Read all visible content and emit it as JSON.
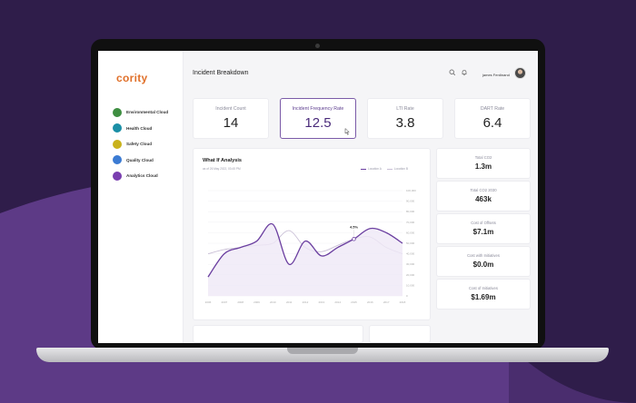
{
  "app": {
    "logo": "cority",
    "page_title": "Incident Breakdown",
    "user_name": "james Ferdinand"
  },
  "sidebar": {
    "items": [
      {
        "label": "Environmental Cloud",
        "icon": "leaf-icon",
        "color": "#3e8e41"
      },
      {
        "label": "Health Cloud",
        "icon": "heart-icon",
        "color": "#1b8fa6"
      },
      {
        "label": "Safety Cloud",
        "icon": "shield-icon",
        "color": "#c9b21c"
      },
      {
        "label": "Quality Cloud",
        "icon": "check-icon",
        "color": "#3b7bd3"
      },
      {
        "label": "Analytics Cloud",
        "icon": "chart-icon",
        "color": "#7a3fb0"
      }
    ]
  },
  "kpis": [
    {
      "label": "Incident Count",
      "value": "14"
    },
    {
      "label": "Incident Frequency Rate",
      "value": "12.5",
      "active": true
    },
    {
      "label": "LTI Rate",
      "value": "3.8"
    },
    {
      "label": "DART Rate",
      "value": "6.4"
    }
  ],
  "analysis": {
    "title": "What If Analysis",
    "subtitle": "as of 26 May 2022, 03:45 PM",
    "legend": [
      "Location A",
      "Location B"
    ],
    "annotation": "4.5%"
  },
  "chart_data": {
    "type": "line",
    "x": [
      "2006",
      "2007",
      "2008",
      "2009",
      "2010",
      "2011",
      "2012",
      "2013",
      "2014",
      "2015",
      "2016",
      "2017",
      "2018"
    ],
    "y_ticks": [
      "100,000",
      "90,000",
      "80,000",
      "70,000",
      "60,000",
      "50,000",
      "40,000",
      "30,000",
      "20,000",
      "10,000",
      "0"
    ],
    "ylim": [
      0,
      100000
    ],
    "series": [
      {
        "name": "Location A",
        "color": "#6b3fa0",
        "values": [
          18000,
          40000,
          46000,
          52000,
          68000,
          30000,
          52000,
          38000,
          46000,
          54000,
          64000,
          60000,
          50000
        ]
      },
      {
        "name": "Location B",
        "color": "#c9bfd6",
        "values": [
          40000,
          44000,
          46000,
          48000,
          50000,
          62000,
          46000,
          42000,
          48000,
          54000,
          56000,
          46000,
          40000
        ]
      }
    ]
  },
  "stats": [
    {
      "label": "Total CO2",
      "value": "1.3m"
    },
    {
      "label": "Total CO2 2030",
      "value": "463k"
    },
    {
      "label": "Cost of Offsets",
      "value": "$7.1m"
    },
    {
      "label": "Cost with Initiatives",
      "value": "$0.0m"
    },
    {
      "label": "Cost of Initiatives",
      "value": "$1.69m"
    }
  ]
}
